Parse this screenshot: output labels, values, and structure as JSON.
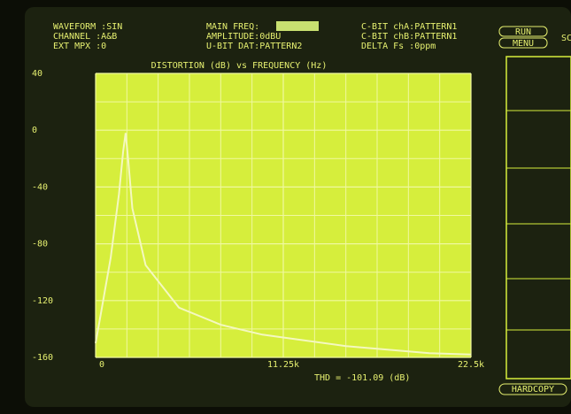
{
  "header": {
    "left": [
      "WAVEFORM :SIN",
      "CHANNEL :A&B",
      "EXT MPX :0"
    ],
    "middle": [
      "MAIN FREQ:",
      "AMPLITUDE:0dBU",
      "U-BIT DAT:PATTERN2"
    ],
    "right": [
      "C-BIT chA:PATTERN1",
      "C-BIT chB:PATTERN1",
      "DELTA Fs :0ppm"
    ]
  },
  "buttons": [
    "RUN",
    "MENU",
    "SC",
    "HARDCOPY"
  ],
  "chart_data": {
    "type": "line",
    "title": "DISTORTION (dB) vs FREQUENCY (Hz)",
    "x": [
      0,
      300,
      900,
      1400,
      1650,
      1800,
      1950,
      2200,
      3000,
      5000,
      7500,
      10000,
      15000,
      20000,
      22500
    ],
    "series": [
      {
        "color": "#f4f8c0",
        "values": [
          -150,
          -130,
          -90,
          -45,
          -15,
          -2,
          -20,
          -55,
          -95,
          -125,
          -137,
          -144,
          -152,
          -157,
          -158
        ]
      }
    ],
    "xlim": [
      0,
      22500
    ],
    "ylim": [
      -160,
      40
    ],
    "xticks": [
      0,
      {
        "value": 11250,
        "label": "11.25k"
      },
      {
        "value": 22500,
        "label": "22.5k"
      }
    ],
    "yticks": [
      40,
      0,
      -40,
      -80,
      -120,
      -160
    ],
    "xgrid": [
      1875,
      3750,
      5625,
      7500,
      9375,
      13125,
      15000,
      16875,
      18750,
      20625
    ],
    "ygrid": [
      20,
      -20,
      -60,
      -100,
      -140
    ],
    "grid": true,
    "plot_color": "#d6ee3c",
    "grid_color": "#f0f8a0",
    "annotations": [
      "THD = -101.09 (dB)"
    ]
  }
}
